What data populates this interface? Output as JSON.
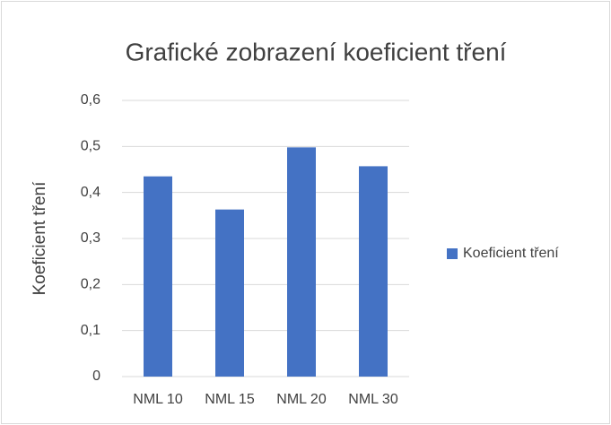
{
  "chart_data": {
    "type": "bar",
    "title": "Grafické zobrazení koeficient tření",
    "y_label": "Koeficient tření",
    "categories": [
      "NML 10",
      "NML 15",
      "NML 20",
      "NML 30"
    ],
    "series": [
      {
        "name": "Koeficient tření",
        "color": "#4472c4",
        "values": [
          0.435,
          0.363,
          0.498,
          0.457
        ]
      }
    ],
    "ylim": [
      0,
      0.6
    ],
    "yticks": [
      0,
      {
        "value": 0.1,
        "label": "0,1"
      },
      {
        "value": 0.2,
        "label": "0,2"
      },
      {
        "value": 0.3,
        "label": "0,3"
      },
      {
        "value": 0.4,
        "label": "0,4"
      },
      {
        "value": 0.5,
        "label": "0,5"
      },
      {
        "value": 0.6,
        "label": "0,6"
      }
    ],
    "grid": true,
    "legend": "right"
  }
}
